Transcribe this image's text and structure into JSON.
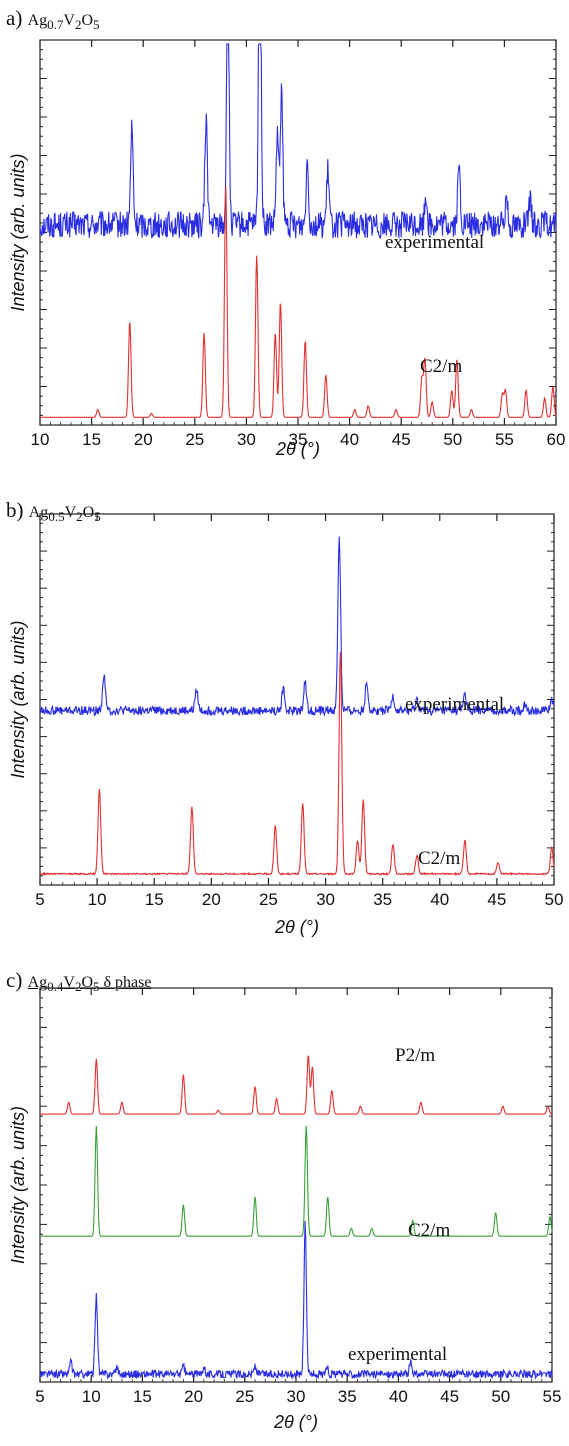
{
  "chart_data": [
    {
      "type": "line",
      "panel_letter": "a)",
      "title_parts": {
        "prefix": "Ag",
        "sub1": "0.7",
        "mid": "V",
        "sub2": "2",
        "mid2": "O",
        "sub3": "5",
        "suffix": ""
      },
      "xlabel": "2θ (°)",
      "ylabel": "Intensity (arb. units)",
      "xlim": [
        10,
        60
      ],
      "xticks": [
        10,
        15,
        20,
        25,
        30,
        35,
        40,
        45,
        50,
        55,
        60
      ],
      "series": [
        {
          "name": "experimental",
          "color": "#2a2ee0",
          "baseline": 0.52,
          "noise": 0.035,
          "peaks": [
            [
              18.9,
              0.25
            ],
            [
              26.1,
              0.28
            ],
            [
              28.2,
              0.68
            ],
            [
              31.3,
              0.87
            ],
            [
              33.0,
              0.23
            ],
            [
              33.4,
              0.35
            ],
            [
              35.9,
              0.17
            ],
            [
              37.9,
              0.14
            ],
            [
              47.4,
              0.08
            ],
            [
              50.6,
              0.15
            ],
            [
              55.2,
              0.08
            ],
            [
              57.5,
              0.06
            ]
          ]
        },
        {
          "name": "C2/m",
          "color": "#e03030",
          "baseline": 0.02,
          "noise": 0.0,
          "peaks": [
            [
              15.6,
              0.02
            ],
            [
              18.7,
              0.25
            ],
            [
              20.8,
              0.01
            ],
            [
              25.9,
              0.22
            ],
            [
              28.0,
              0.6
            ],
            [
              31.0,
              0.42
            ],
            [
              32.8,
              0.22
            ],
            [
              33.3,
              0.3
            ],
            [
              35.7,
              0.2
            ],
            [
              37.7,
              0.11
            ],
            [
              40.5,
              0.02
            ],
            [
              41.8,
              0.03
            ],
            [
              44.5,
              0.02
            ],
            [
              47.0,
              0.1
            ],
            [
              47.3,
              0.15
            ],
            [
              48.0,
              0.04
            ],
            [
              49.9,
              0.07
            ],
            [
              50.4,
              0.15
            ],
            [
              51.8,
              0.02
            ],
            [
              54.8,
              0.06
            ],
            [
              55.1,
              0.07
            ],
            [
              57.1,
              0.07
            ],
            [
              58.9,
              0.05
            ],
            [
              59.7,
              0.08
            ]
          ]
        }
      ],
      "series_labels": [
        "experimental",
        "C2/m"
      ]
    },
    {
      "type": "line",
      "panel_letter": "b)",
      "title_parts": {
        "prefix": "Ag",
        "sub1": "0.5",
        "mid": "V",
        "sub2": "2",
        "mid2": "O",
        "sub3": "5",
        "suffix": ""
      },
      "xlabel": "2θ (°)",
      "ylabel": "Intensity (arb. units)",
      "xlim": [
        5,
        50
      ],
      "xticks": [
        5,
        10,
        15,
        20,
        25,
        30,
        35,
        40,
        45,
        50
      ],
      "series": [
        {
          "name": "experimental",
          "color": "#2a2ee0",
          "baseline": 0.47,
          "noise": 0.012,
          "peaks": [
            [
              10.6,
              0.1
            ],
            [
              18.7,
              0.06
            ],
            [
              26.3,
              0.06
            ],
            [
              28.2,
              0.08
            ],
            [
              31.2,
              0.47
            ],
            [
              33.6,
              0.08
            ],
            [
              35.9,
              0.04
            ],
            [
              38.0,
              0.03
            ],
            [
              42.2,
              0.05
            ],
            [
              47.5,
              0.02
            ],
            [
              49.8,
              0.03
            ]
          ]
        },
        {
          "name": "C2/m",
          "color": "#e03030",
          "baseline": 0.03,
          "noise": 0.002,
          "peaks": [
            [
              10.2,
              0.23
            ],
            [
              18.3,
              0.18
            ],
            [
              25.6,
              0.13
            ],
            [
              28.0,
              0.19
            ],
            [
              31.3,
              0.6
            ],
            [
              32.8,
              0.09
            ],
            [
              33.3,
              0.2
            ],
            [
              35.9,
              0.08
            ],
            [
              38.0,
              0.05
            ],
            [
              42.2,
              0.09
            ],
            [
              45.1,
              0.03
            ],
            [
              49.8,
              0.07
            ]
          ]
        }
      ],
      "series_labels": [
        "experimental",
        "C2/m"
      ]
    },
    {
      "type": "line",
      "panel_letter": "c)",
      "title_parts": {
        "prefix": "Ag",
        "sub1": "0.4",
        "mid": "V",
        "sub2": "2",
        "mid2": "O",
        "sub3": "5",
        "suffix": " δ phase"
      },
      "xlabel": "2θ (°)",
      "ylabel": "Intensity (arb. units)",
      "xlim": [
        5,
        55
      ],
      "xticks": [
        5,
        10,
        15,
        20,
        25,
        30,
        35,
        40,
        45,
        50,
        55
      ],
      "series": [
        {
          "name": "P2/m",
          "color": "#e03030",
          "baseline": 0.68,
          "noise": 0.0,
          "peaks": [
            [
              7.8,
              0.03
            ],
            [
              10.5,
              0.14
            ],
            [
              13.0,
              0.03
            ],
            [
              19.0,
              0.1
            ],
            [
              22.4,
              0.01
            ],
            [
              26.0,
              0.07
            ],
            [
              28.1,
              0.04
            ],
            [
              31.2,
              0.15
            ],
            [
              31.6,
              0.12
            ],
            [
              33.5,
              0.06
            ],
            [
              36.3,
              0.02
            ],
            [
              42.2,
              0.03
            ],
            [
              50.2,
              0.02
            ],
            [
              54.6,
              0.02
            ]
          ]
        },
        {
          "name": "C2/m",
          "color": "#3a9e3a",
          "baseline": 0.37,
          "noise": 0.0,
          "peaks": [
            [
              10.5,
              0.28
            ],
            [
              19.0,
              0.08
            ],
            [
              26.0,
              0.1
            ],
            [
              31.0,
              0.28
            ],
            [
              33.1,
              0.1
            ],
            [
              35.4,
              0.02
            ],
            [
              37.4,
              0.02
            ],
            [
              41.4,
              0.04
            ],
            [
              49.5,
              0.06
            ],
            [
              54.8,
              0.05
            ]
          ]
        },
        {
          "name": "experimental",
          "color": "#2a2ee0",
          "baseline": 0.02,
          "noise": 0.01,
          "peaks": [
            [
              8.0,
              0.03
            ],
            [
              10.5,
              0.2
            ],
            [
              12.5,
              0.02
            ],
            [
              19.0,
              0.02
            ],
            [
              21.0,
              0.02
            ],
            [
              26.0,
              0.02
            ],
            [
              30.9,
              0.38
            ],
            [
              33.0,
              0.02
            ],
            [
              41.2,
              0.03
            ]
          ]
        }
      ],
      "series_labels": [
        "P2/m",
        "C2/m",
        "experimental"
      ]
    }
  ]
}
